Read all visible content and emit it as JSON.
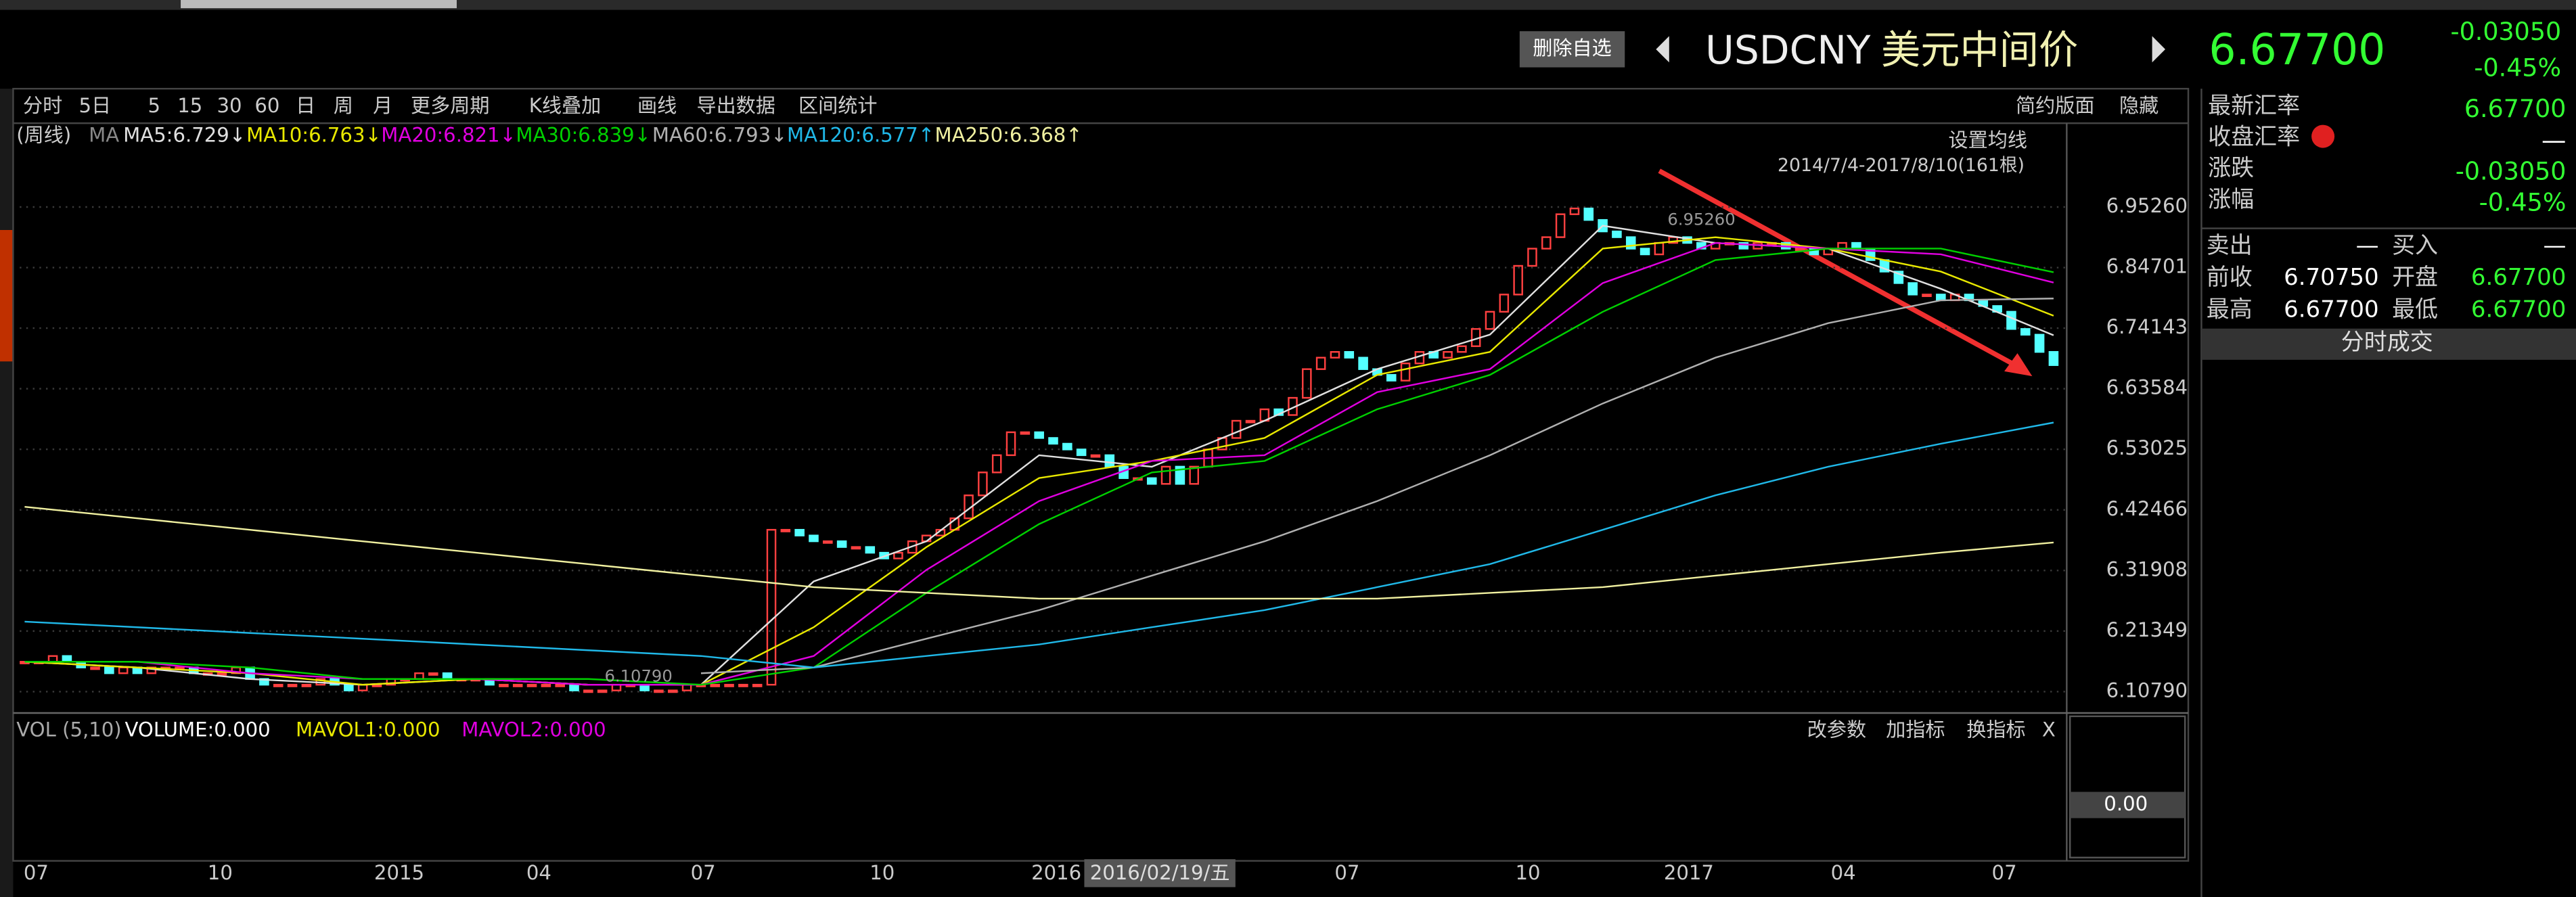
{
  "header": {
    "button": "删除自选",
    "symbol": "USDCNY",
    "name": "美元中间价",
    "price": "6.67700",
    "change": "-0.03050",
    "change_pct": "-0.45%"
  },
  "toolbar": [
    "分时",
    "5日",
    "5",
    "15",
    "30",
    "60",
    "日",
    "周",
    "月",
    "更多周期",
    "K线叠加",
    "画线",
    "导出数据",
    "区间统计"
  ],
  "toolbar_right": [
    "简约版面",
    "隐藏"
  ],
  "chart_data": {
    "type": "candlestick",
    "period_label": "(周线)",
    "ma_label": "MA",
    "setting": "设置均线",
    "range_label": "2014/7/4-2017/8/10(161根)",
    "values": [
      6.16,
      6.16,
      6.17,
      6.16,
      6.15,
      6.15,
      6.14,
      6.15,
      6.14,
      6.15,
      6.15,
      6.15,
      6.14,
      6.14,
      6.14,
      6.15,
      6.13,
      6.12,
      6.12,
      6.12,
      6.12,
      6.13,
      6.12,
      6.11,
      6.12,
      6.12,
      6.13,
      6.13,
      6.14,
      6.14,
      6.13,
      6.13,
      6.13,
      6.12,
      6.12,
      6.12,
      6.12,
      6.12,
      6.12,
      6.11,
      6.11,
      6.11,
      6.12,
      6.12,
      6.11,
      6.11,
      6.11,
      6.12,
      6.12,
      6.12,
      6.12,
      6.12,
      6.12,
      6.39,
      6.39,
      6.38,
      6.37,
      6.37,
      6.36,
      6.36,
      6.35,
      6.34,
      6.35,
      6.37,
      6.38,
      6.39,
      6.41,
      6.45,
      6.49,
      6.52,
      6.56,
      6.56,
      6.55,
      6.54,
      6.53,
      6.52,
      6.52,
      6.5,
      6.48,
      6.48,
      6.47,
      6.5,
      6.47,
      6.5,
      6.53,
      6.55,
      6.58,
      6.58,
      6.6,
      6.59,
      6.62,
      6.67,
      6.69,
      6.7,
      6.69,
      6.67,
      6.66,
      6.65,
      6.68,
      6.7,
      6.69,
      6.7,
      6.71,
      6.74,
      6.77,
      6.8,
      6.85,
      6.88,
      6.9,
      6.94,
      6.95,
      6.93,
      6.91,
      6.9,
      6.88,
      6.87,
      6.89,
      6.9,
      6.89,
      6.88,
      6.89,
      6.89,
      6.88,
      6.89,
      6.89,
      6.88,
      6.88,
      6.87,
      6.88,
      6.89,
      6.88,
      6.86,
      6.84,
      6.82,
      6.8,
      6.8,
      6.79,
      6.8,
      6.79,
      6.78,
      6.77,
      6.74,
      6.73,
      6.7,
      6.677
    ],
    "up_color": "#ff4040",
    "down_color": "#54ffff",
    "series": [
      {
        "name": "MA5:6.729",
        "arrow": "↓",
        "color": "#e0e0e0",
        "values": [
          6.16,
          6.15,
          6.13,
          6.12,
          6.13,
          6.12,
          6.12,
          6.3,
          6.37,
          6.52,
          6.5,
          6.58,
          6.67,
          6.73,
          6.92,
          6.89,
          6.88,
          6.81,
          6.729
        ]
      },
      {
        "name": "MA10:6.763",
        "arrow": "↓",
        "color": "#e8e800",
        "values": [
          6.16,
          6.15,
          6.14,
          6.12,
          6.13,
          6.12,
          6.12,
          6.22,
          6.36,
          6.48,
          6.51,
          6.55,
          6.66,
          6.7,
          6.88,
          6.9,
          6.88,
          6.84,
          6.763
        ]
      },
      {
        "name": "MA20:6.821",
        "arrow": "↓",
        "color": "#e000e0",
        "values": [
          6.16,
          6.16,
          6.14,
          6.13,
          6.13,
          6.12,
          6.12,
          6.17,
          6.32,
          6.44,
          6.51,
          6.52,
          6.63,
          6.67,
          6.82,
          6.89,
          6.88,
          6.87,
          6.821
        ]
      },
      {
        "name": "MA30:6.839",
        "arrow": "↓",
        "color": "#00d000",
        "values": [
          6.16,
          6.16,
          6.15,
          6.13,
          6.13,
          6.13,
          6.12,
          6.15,
          6.28,
          6.4,
          6.49,
          6.51,
          6.6,
          6.66,
          6.77,
          6.86,
          6.88,
          6.88,
          6.839
        ]
      },
      {
        "name": "MA60:6.793",
        "arrow": "↓",
        "color": "#b0b0b0",
        "values": [
          null,
          null,
          null,
          null,
          null,
          null,
          6.14,
          6.15,
          6.2,
          6.25,
          6.31,
          6.37,
          6.44,
          6.52,
          6.61,
          6.69,
          6.75,
          6.79,
          6.793
        ]
      },
      {
        "name": "MA120:6.577",
        "arrow": "↑",
        "color": "#20b8e8",
        "values": [
          6.23,
          6.22,
          6.21,
          6.2,
          6.19,
          6.18,
          6.17,
          6.15,
          6.17,
          6.19,
          6.22,
          6.25,
          6.29,
          6.33,
          6.39,
          6.45,
          6.5,
          6.54,
          6.577
        ]
      },
      {
        "name": "MA250:6.368",
        "arrow": "↑",
        "color": "#f0f0a0",
        "values": [
          6.43,
          6.41,
          6.39,
          6.37,
          6.35,
          6.33,
          6.31,
          6.29,
          6.28,
          6.27,
          6.27,
          6.27,
          6.27,
          6.28,
          6.29,
          6.31,
          6.33,
          6.35,
          6.368
        ]
      }
    ],
    "ylim": [
      6.0764,
      7.0986
    ],
    "yticks": [
      {
        "value": 6.9526,
        "label": "6.95260"
      },
      6.84701,
      6.74143,
      6.63584,
      6.53025,
      6.42466,
      6.31908,
      6.21349,
      {
        "value": 6.1079,
        "label": "6.10790"
      }
    ],
    "grid": true,
    "annotations": [
      {
        "value": 6.9526,
        "label": "6.95260"
      },
      {
        "value": 6.1079,
        "label": "6.10790"
      }
    ],
    "x_labels": [
      "07",
      "10",
      "2015",
      "04",
      "07",
      "10",
      "2016",
      "07",
      "10",
      "2017",
      "04",
      "07"
    ],
    "cursor_label": "2016/02/19/五"
  },
  "volume": {
    "legend": "VOL (5,10)",
    "items": [
      {
        "name": "VOLUME:0.000",
        "color": "#ffffff"
      },
      {
        "name": "MAVOL1:0.000",
        "color": "#e8e800"
      },
      {
        "name": "MAVOL2:0.000",
        "color": "#e000e0"
      }
    ],
    "buttons": [
      "改参数",
      "加指标",
      "换指标",
      "X"
    ],
    "value": "0.00"
  },
  "quote": {
    "rows": [
      [
        "最新汇率",
        "6.67700"
      ],
      [
        "收盘汇率",
        "—"
      ],
      [
        "涨跌",
        "-0.03050"
      ],
      [
        "涨幅",
        "-0.45%"
      ]
    ],
    "grid": [
      [
        "卖出",
        "—",
        "买入",
        "—"
      ],
      [
        "前收",
        "6.70750",
        "开盘",
        "6.67700"
      ],
      [
        "最高",
        "6.67700",
        "最低",
        "6.67700"
      ]
    ],
    "footer": "分时成交"
  }
}
